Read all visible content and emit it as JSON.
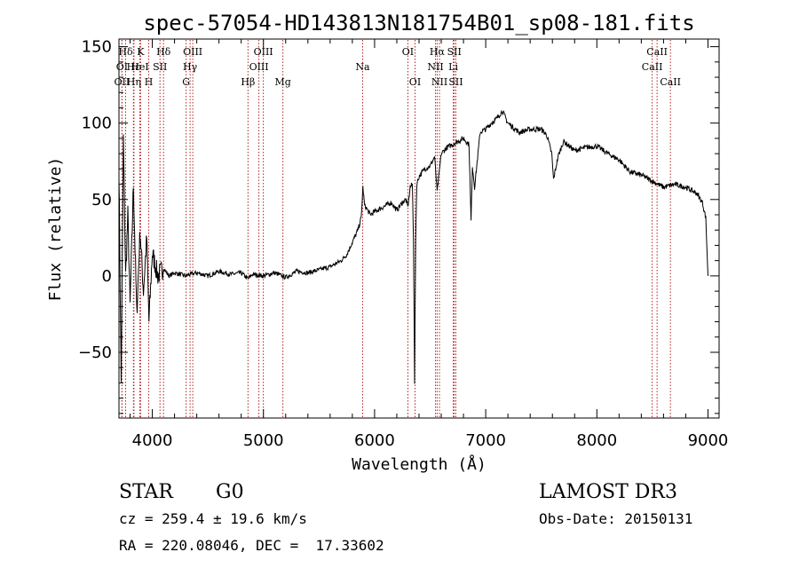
{
  "header": {
    "title": "spec-57054-HD143813N181754B01_sp08-181.fits"
  },
  "info": {
    "class": "STAR",
    "subclass": "G0",
    "survey": "LAMOST DR3",
    "redshift": "cz = 259.4 ± 19.6 km/s",
    "obs_date": "Obs-Date: 20150131",
    "coords": "RA = 220.08046, DEC =  17.33602"
  },
  "colors": {
    "spectrum": "#000000",
    "line_markers": "#b22222",
    "axes": "#000000"
  },
  "chart_data": {
    "type": "line",
    "title": "spec-57054-HD143813N181754B01_sp08-181.fits",
    "xlabel": "Wavelength (Å)",
    "ylabel": "Flux (relative)",
    "xlim": [
      3700,
      9100
    ],
    "ylim": [
      -93,
      155
    ],
    "x_ticks": [
      4000,
      5000,
      6000,
      7000,
      8000,
      9000
    ],
    "y_ticks": [
      -50,
      0,
      50,
      100,
      150
    ],
    "grid": false,
    "legend": "none",
    "series": [
      {
        "x": [
          3700,
          3720,
          3740,
          3760,
          3780,
          3800,
          3830,
          3860,
          3890,
          3920,
          3950,
          3970,
          4000,
          4050,
          4100,
          4150,
          4200,
          4300,
          4340,
          4400,
          4500,
          4600,
          4700,
          4800,
          4861,
          4900,
          5000,
          5100,
          5200,
          5300,
          5400,
          5500,
          5600,
          5700,
          5750,
          5800,
          5850,
          5880,
          5895,
          5910,
          5930,
          5960,
          6000,
          6050,
          6100,
          6150,
          6200,
          6250,
          6280,
          6300,
          6320,
          6340,
          6350,
          6360,
          6370,
          6380,
          6400,
          6450,
          6500,
          6540,
          6563,
          6600,
          6650,
          6700,
          6750,
          6800,
          6850,
          6868,
          6880,
          6900,
          6950,
          7000,
          7050,
          7100,
          7150,
          7200,
          7250,
          7300,
          7400,
          7500,
          7550,
          7594,
          7610,
          7650,
          7700,
          7800,
          7900,
          8000,
          8100,
          8200,
          8300,
          8400,
          8500,
          8600,
          8700,
          8800,
          8900,
          8950,
          8980,
          9000
        ],
        "y": [
          70,
          -70,
          90,
          0,
          40,
          -20,
          60,
          -25,
          30,
          -10,
          25,
          -30,
          15,
          0,
          5,
          0,
          2,
          0,
          1,
          2,
          0,
          3,
          1,
          2,
          -2,
          1,
          0,
          2,
          -1,
          3,
          2,
          4,
          6,
          10,
          14,
          22,
          30,
          38,
          58,
          46,
          44,
          40,
          42,
          44,
          46,
          48,
          43,
          48,
          50,
          45,
          58,
          60,
          25,
          -70,
          25,
          60,
          65,
          70,
          72,
          78,
          55,
          80,
          84,
          86,
          88,
          90,
          86,
          36,
          72,
          58,
          94,
          96,
          100,
          103,
          108,
          100,
          97,
          94,
          96,
          96,
          92,
          80,
          63,
          78,
          88,
          82,
          84,
          85,
          80,
          76,
          68,
          66,
          62,
          58,
          60,
          58,
          54,
          48,
          38,
          0
        ]
      }
    ],
    "annotations": [
      {
        "label": "Hδ",
        "x": 3760,
        "row": 1
      },
      {
        "label": "K",
        "x": 3895,
        "row": 1
      },
      {
        "label": "Hδ",
        "x": 4101,
        "row": 1
      },
      {
        "label": "OIII",
        "x": 4364,
        "row": 1
      },
      {
        "label": "OIII",
        "x": 4999,
        "row": 1
      },
      {
        "label": "OI",
        "x": 6300,
        "row": 1
      },
      {
        "label": "Hα",
        "x": 6563,
        "row": 1
      },
      {
        "label": "SII",
        "x": 6717,
        "row": 1
      },
      {
        "label": "CaII",
        "x": 8542,
        "row": 1
      },
      {
        "label": "OI",
        "x": 3727,
        "row": 2
      },
      {
        "label": "Hε",
        "x": 3830,
        "row": 2
      },
      {
        "label": "HeI",
        "x": 3888,
        "row": 2
      },
      {
        "label": "SII",
        "x": 4069,
        "row": 2
      },
      {
        "label": "Hγ",
        "x": 4340,
        "row": 2
      },
      {
        "label": "OIII",
        "x": 4959,
        "row": 2
      },
      {
        "label": "Na",
        "x": 5893,
        "row": 2
      },
      {
        "label": "NII",
        "x": 6548,
        "row": 2
      },
      {
        "label": "Li",
        "x": 6708,
        "row": 2
      },
      {
        "label": "CaII",
        "x": 8498,
        "row": 2
      },
      {
        "label": "OII",
        "x": 3727,
        "row": 3
      },
      {
        "label": "Hη",
        "x": 3835,
        "row": 3
      },
      {
        "label": "H",
        "x": 3968,
        "row": 3
      },
      {
        "label": "G",
        "x": 4304,
        "row": 3
      },
      {
        "label": "Hβ",
        "x": 4861,
        "row": 3
      },
      {
        "label": "Mg",
        "x": 5175,
        "row": 3
      },
      {
        "label": "OI",
        "x": 6364,
        "row": 3
      },
      {
        "label": "NII",
        "x": 6584,
        "row": 3
      },
      {
        "label": "SII",
        "x": 6731,
        "row": 3
      },
      {
        "label": "CaII",
        "x": 8662,
        "row": 3
      }
    ]
  }
}
